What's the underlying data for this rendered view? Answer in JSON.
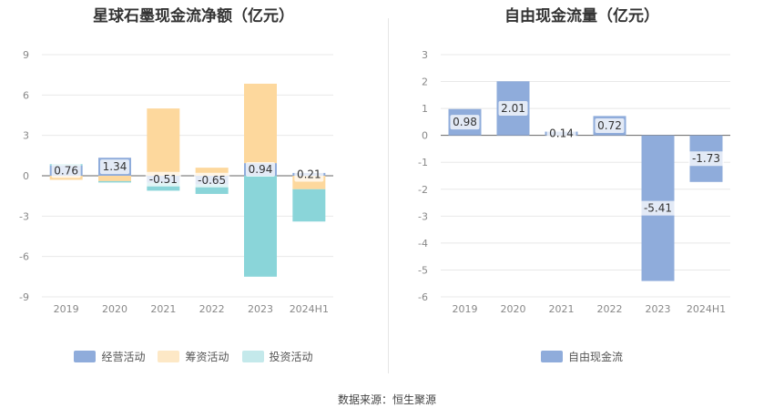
{
  "chart_data": [
    {
      "type": "bar",
      "stacked": true,
      "title": "星球石墨现金流净额（亿元）",
      "categories": [
        "2019",
        "2020",
        "2021",
        "2022",
        "2023",
        "2024H1"
      ],
      "ylim": [
        -9,
        9
      ],
      "yticks": [
        9,
        6,
        3,
        0,
        -3,
        -6,
        -9
      ],
      "grid": true,
      "legend_position": "bottom",
      "series": [
        {
          "name": "经营活动",
          "color": "#8facdb",
          "values": [
            0.76,
            1.34,
            -0.51,
            -0.65,
            0.94,
            0.21
          ],
          "labels": [
            "0.76",
            "1.34",
            "-0.51",
            "-0.65",
            "0.94",
            "0.21"
          ]
        },
        {
          "name": "筹资活动",
          "color": "#fdd89d",
          "values": [
            -0.3,
            -0.4,
            5.0,
            0.6,
            5.9,
            -1.0
          ]
        },
        {
          "name": "投资活动",
          "color": "#8ad5d9",
          "values": [
            0.1,
            -0.1,
            -0.6,
            -0.7,
            -7.5,
            -2.4
          ]
        }
      ]
    },
    {
      "type": "bar",
      "title": "自由现金流量（亿元）",
      "categories": [
        "2019",
        "2020",
        "2021",
        "2022",
        "2023",
        "2024H1"
      ],
      "ylim": [
        -6,
        3
      ],
      "yticks": [
        3,
        2,
        1,
        0,
        -1,
        -2,
        -3,
        -4,
        -5,
        -6
      ],
      "grid": true,
      "legend_position": "bottom",
      "series": [
        {
          "name": "自由现金流",
          "color": "#8facdb",
          "values": [
            0.98,
            2.01,
            0.14,
            0.72,
            -5.41,
            -1.73
          ],
          "labels": [
            "0.98",
            "2.01",
            "0.14",
            "0.72",
            "-5.41",
            "-1.73"
          ]
        }
      ]
    }
  ],
  "footer": {
    "source": "数据来源：恒生聚源"
  }
}
